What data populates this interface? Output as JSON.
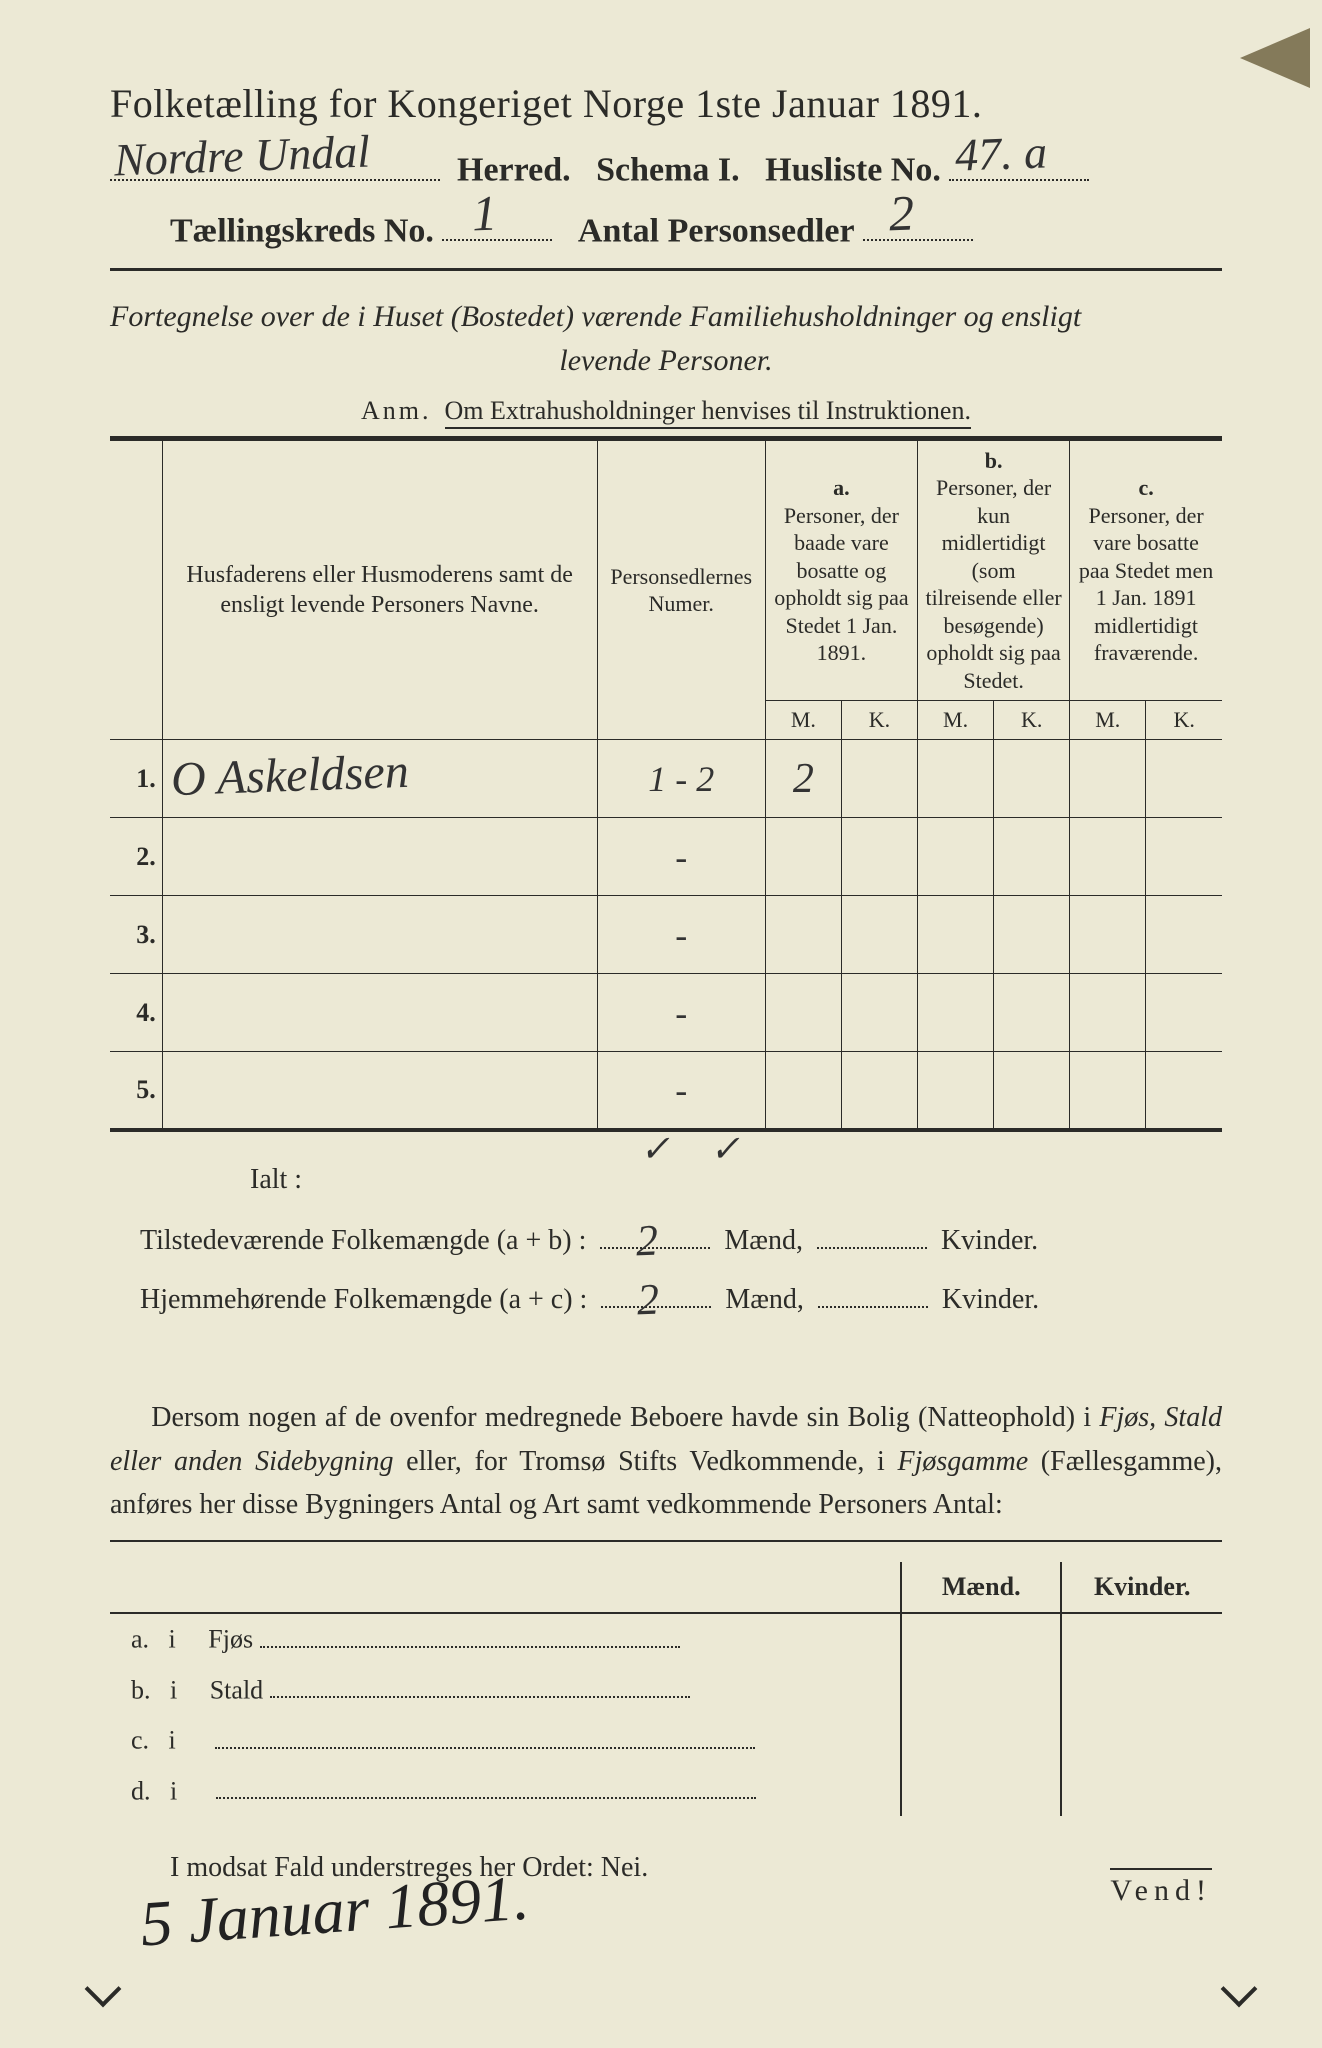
{
  "colors": {
    "paper_bg": "#ece9d5",
    "ink": "#2b2b28",
    "handwriting": "#333333"
  },
  "typography": {
    "title_fontsize_pt": 30,
    "line2_fontsize_pt": 26,
    "body_fontsize_pt": 21,
    "handwriting_family": "cursive"
  },
  "header": {
    "title": "Folketælling for Kongeriget Norge 1ste Januar 1891.",
    "herred_label": "Herred.",
    "herred_value": "Nordre Undal",
    "schema": "Schema I.",
    "husliste_label": "Husliste No.",
    "husliste_value": "47. a",
    "kreds_label": "Tællingskreds No.",
    "kreds_value": "1",
    "antal_label": "Antal Personsedler",
    "antal_value": "2"
  },
  "subtitle": {
    "line1": "Fortegnelse over de i Huset (Bostedet) værende Familiehusholdninger og ensligt",
    "line2": "levende Personer.",
    "anm_label": "Anm.",
    "anm_text": "Om Extrahusholdninger henvises til Instruktionen."
  },
  "table": {
    "head_name": "Husfaderens eller Husmoderens samt de ensligt levende Personers Navne.",
    "head_num": "Personsedlernes Numer.",
    "group_a_label": "a.",
    "group_a_text": "Personer, der baade vare bosatte og opholdt sig paa Stedet 1 Jan. 1891.",
    "group_b_label": "b.",
    "group_b_text": "Personer, der kun midlertidigt (som tilreisende eller besøgende) opholdt sig paa Stedet.",
    "group_c_label": "c.",
    "group_c_text": "Personer, der vare bosatte paa Stedet men 1 Jan. 1891 midlertidigt fraværende.",
    "mk_m": "M.",
    "mk_k": "K.",
    "rows": [
      {
        "idx": "1.",
        "name": "O Askeldsen",
        "num": "1 - 2",
        "a_m": "2",
        "a_k": "",
        "b_m": "",
        "b_k": "",
        "c_m": "",
        "c_k": ""
      },
      {
        "idx": "2.",
        "name": "",
        "num": "-",
        "a_m": "",
        "a_k": "",
        "b_m": "",
        "b_k": "",
        "c_m": "",
        "c_k": ""
      },
      {
        "idx": "3.",
        "name": "",
        "num": "-",
        "a_m": "",
        "a_k": "",
        "b_m": "",
        "b_k": "",
        "c_m": "",
        "c_k": ""
      },
      {
        "idx": "4.",
        "name": "",
        "num": "-",
        "a_m": "",
        "a_k": "",
        "b_m": "",
        "b_k": "",
        "c_m": "",
        "c_k": ""
      },
      {
        "idx": "5.",
        "name": "",
        "num": "-",
        "a_m": "",
        "a_k": "",
        "b_m": "",
        "b_k": "",
        "c_m": "",
        "c_k": ""
      }
    ],
    "checkmarks_below": true
  },
  "totals": {
    "ialt": "Ialt :",
    "line1_label": "Tilstedeværende Folkemængde (a + b) :",
    "line1_m": "2",
    "line2_label": "Hjemmehørende Folkemængde (a + c) :",
    "line2_m": "2",
    "maend": "Mænd,",
    "kvinder": "Kvinder."
  },
  "paragraph": "Dersom nogen af de ovenfor medregnede Beboere havde sin Bolig (Natteophold) i Fjøs, Stald eller anden Sidebygning eller, for Tromsø Stifts Vedkommende, i Fjøsgamme (Fællesgamme), anføres her disse Bygningers Antal og Art samt vedkommende Personers Antal:",
  "side_table": {
    "maend": "Mænd.",
    "kvinder": "Kvinder.",
    "rows": [
      {
        "key": "a.",
        "i": "i",
        "label": "Fjøs"
      },
      {
        "key": "b.",
        "i": "i",
        "label": "Stald"
      },
      {
        "key": "c.",
        "i": "i",
        "label": ""
      },
      {
        "key": "d.",
        "i": "i",
        "label": ""
      }
    ]
  },
  "nei_line": "I modsat Fald understreges her Ordet: Nei.",
  "date_signature": "5 Januar 1891.",
  "vend": "Vend!"
}
